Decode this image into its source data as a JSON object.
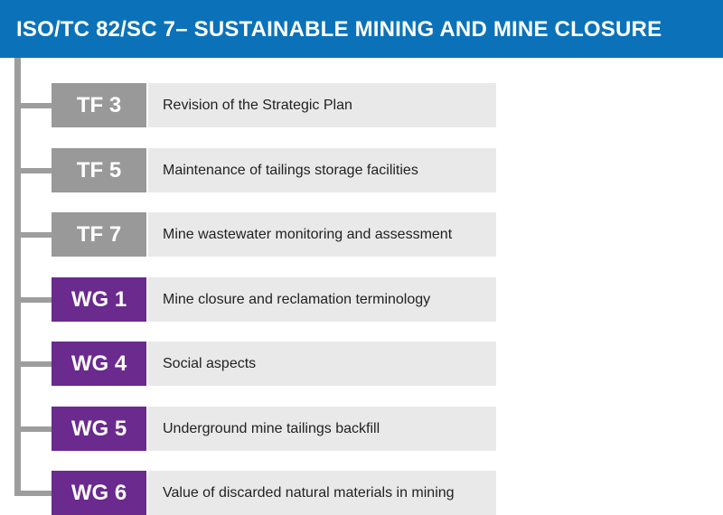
{
  "header": {
    "title": "ISO/TC 82/SC 7– SUSTAINABLE MINING AND MINE CLOSURE"
  },
  "colors": {
    "header_bg": "#0b72b9",
    "task_force": "#999999",
    "working_group": "#6a2a8e",
    "description_bg": "#e9e9e9",
    "connector": "#9d9d9d"
  },
  "items": [
    {
      "code": "TF 3",
      "kind": "tf",
      "description": "Revision of the Strategic Plan"
    },
    {
      "code": "TF 5",
      "kind": "tf",
      "description": "Maintenance of tailings storage facilities"
    },
    {
      "code": "TF 7",
      "kind": "tf",
      "description": "Mine wastewater monitoring and assessment"
    },
    {
      "code": "WG 1",
      "kind": "wg",
      "description": "Mine closure and reclamation terminology"
    },
    {
      "code": "WG 4",
      "kind": "wg",
      "description": "Social aspects"
    },
    {
      "code": "WG 5",
      "kind": "wg",
      "description": "Underground mine tailings backfill"
    },
    {
      "code": "WG 6",
      "kind": "wg",
      "description": "Value of discarded natural materials in mining"
    }
  ]
}
